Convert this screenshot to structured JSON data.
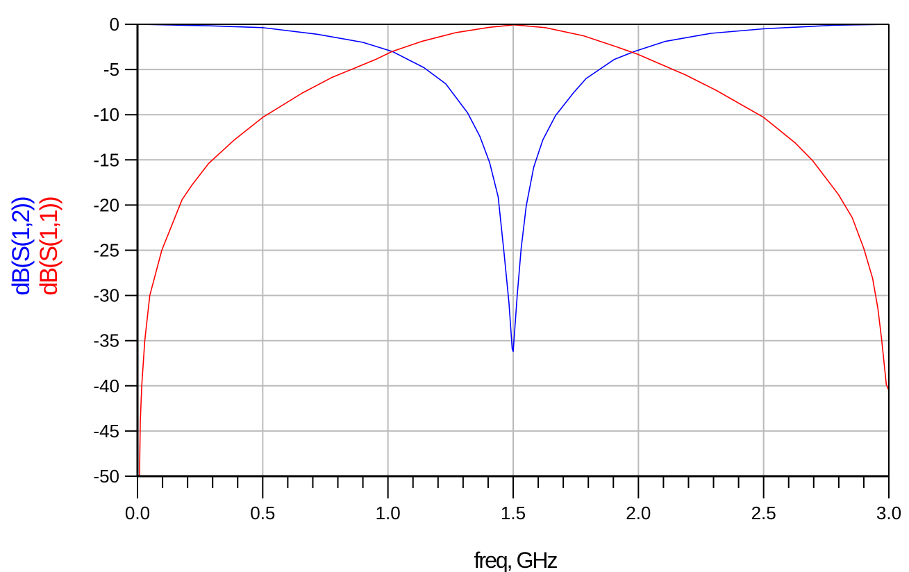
{
  "chart_data": {
    "type": "line",
    "title": "",
    "xlabel": "freq, GHz",
    "ylabels": [
      {
        "text": "dB(S(1,2))",
        "color": "#0000ff"
      },
      {
        "text": "dB(S(1,1))",
        "color": "#ff0000"
      }
    ],
    "xlim": [
      0.0,
      3.0
    ],
    "ylim": [
      -50,
      0
    ],
    "xticks": [
      "0.0",
      "0.5",
      "1.0",
      "1.5",
      "2.0",
      "2.5",
      "3.0"
    ],
    "yticks": [
      "0",
      "-5",
      "-10",
      "-15",
      "-20",
      "-25",
      "-30",
      "-35",
      "-40",
      "-45",
      "-50"
    ],
    "x_minor_step": 0.1,
    "grid": true,
    "grid_color": "#bbbbbb",
    "series": [
      {
        "name": "dB(S(1,2))",
        "color": "#0000ff",
        "points": [
          [
            0.0,
            0.0
          ],
          [
            0.29,
            -0.17
          ],
          [
            0.5,
            -0.37
          ],
          [
            0.717,
            -1.1
          ],
          [
            0.9,
            -2.0
          ],
          [
            1.017,
            -3.0
          ],
          [
            1.144,
            -4.8
          ],
          [
            1.231,
            -6.6
          ],
          [
            1.318,
            -9.8
          ],
          [
            1.367,
            -12.4
          ],
          [
            1.406,
            -15.3
          ],
          [
            1.44,
            -19.1
          ],
          [
            1.464,
            -25.4
          ],
          [
            1.483,
            -30.8
          ],
          [
            1.496,
            -35.9
          ],
          [
            1.5,
            -36.2
          ],
          [
            1.516,
            -30.0
          ],
          [
            1.532,
            -24.8
          ],
          [
            1.552,
            -20.1
          ],
          [
            1.582,
            -15.8
          ],
          [
            1.618,
            -12.8
          ],
          [
            1.669,
            -10.1
          ],
          [
            1.74,
            -7.6
          ],
          [
            1.791,
            -6.0
          ],
          [
            1.903,
            -3.9
          ],
          [
            1.984,
            -3.0
          ],
          [
            2.106,
            -1.9
          ],
          [
            2.29,
            -1.0
          ],
          [
            2.5,
            -0.5
          ],
          [
            2.78,
            -0.1
          ],
          [
            3.0,
            0.0
          ]
        ]
      },
      {
        "name": "dB(S(1,1))",
        "color": "#ff0000",
        "points": [
          [
            0.008,
            -50.0
          ],
          [
            0.011,
            -44.0
          ],
          [
            0.017,
            -40.0
          ],
          [
            0.029,
            -35.0
          ],
          [
            0.049,
            -30.0
          ],
          [
            0.097,
            -25.0
          ],
          [
            0.178,
            -19.4
          ],
          [
            0.217,
            -17.8
          ],
          [
            0.284,
            -15.4
          ],
          [
            0.386,
            -12.8
          ],
          [
            0.5,
            -10.3
          ],
          [
            0.658,
            -7.6
          ],
          [
            0.775,
            -5.9
          ],
          [
            0.95,
            -3.9
          ],
          [
            1.017,
            -3.0
          ],
          [
            1.134,
            -1.9
          ],
          [
            1.27,
            -0.93
          ],
          [
            1.406,
            -0.33
          ],
          [
            1.49,
            -0.1
          ],
          [
            1.5,
            -0.05
          ],
          [
            1.628,
            -0.37
          ],
          [
            1.78,
            -1.27
          ],
          [
            1.903,
            -2.4
          ],
          [
            1.996,
            -3.3
          ],
          [
            2.188,
            -5.6
          ],
          [
            2.31,
            -7.3
          ],
          [
            2.5,
            -10.3
          ],
          [
            2.625,
            -13.1
          ],
          [
            2.696,
            -15.1
          ],
          [
            2.798,
            -18.8
          ],
          [
            2.854,
            -21.4
          ],
          [
            2.9,
            -24.8
          ],
          [
            2.935,
            -28.1
          ],
          [
            2.956,
            -31.4
          ],
          [
            2.971,
            -34.8
          ],
          [
            2.99,
            -39.9
          ],
          [
            3.0,
            -40.5
          ]
        ]
      }
    ]
  }
}
